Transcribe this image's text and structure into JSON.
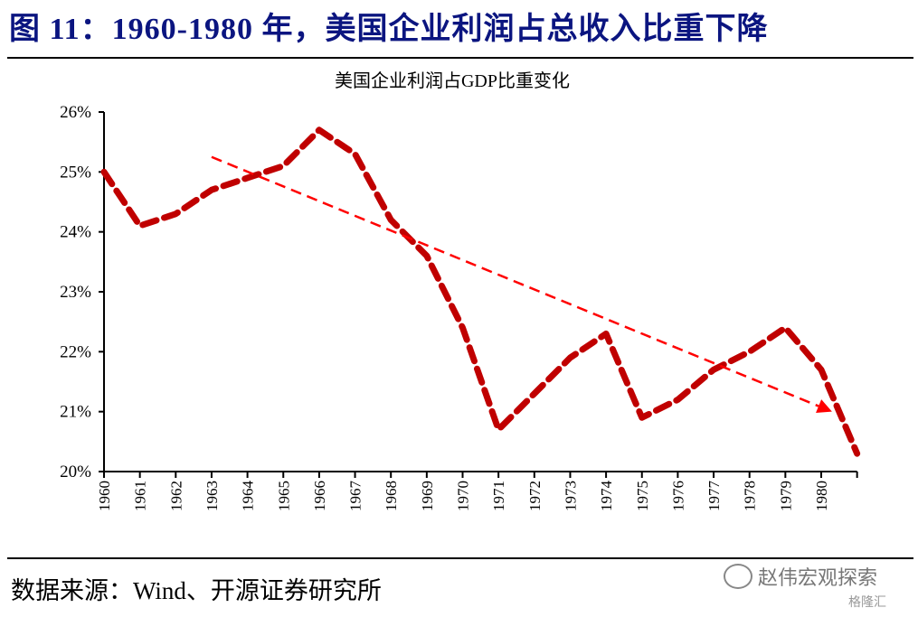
{
  "figure": {
    "title": "图 11：1960-1980 年，美国企业利润占总收入比重下降",
    "source": "数据来源：Wind、开源证券研究所",
    "watermark": "赵伟宏观探索",
    "watermark2": "格隆汇"
  },
  "colors": {
    "title": "#0b1580",
    "series": "#c00000",
    "trend": "#ff0000",
    "axis": "#000000"
  },
  "chart_data": {
    "type": "line",
    "title": "美国企业利润占GDP比重变化",
    "xlabel": "",
    "ylabel": "",
    "ylim": [
      20,
      26
    ],
    "yticks": [
      "20%",
      "21%",
      "22%",
      "23%",
      "24%",
      "25%",
      "26%"
    ],
    "ytick_values": [
      20,
      21,
      22,
      23,
      24,
      25,
      26
    ],
    "xtick_labels": [
      "1960",
      "1961",
      "1962",
      "1963",
      "1964",
      "1965",
      "1966",
      "1967",
      "1968",
      "1969",
      "1970",
      "1971",
      "1972",
      "1973",
      "1974",
      "1975",
      "1976",
      "1977",
      "1978",
      "1979",
      "1980"
    ],
    "x": [
      1960,
      1961,
      1962,
      1963,
      1964,
      1965,
      1966,
      1967,
      1968,
      1969,
      1970,
      1971,
      1972,
      1973,
      1974,
      1975,
      1976,
      1977,
      1978,
      1979,
      1980,
      1981
    ],
    "xlim": [
      1960,
      1981
    ],
    "grid": false,
    "legend": "none",
    "series": [
      {
        "name": "美国企业利润占GDP比重",
        "style": "thick-dashed",
        "values": [
          25.0,
          24.1,
          24.3,
          24.7,
          24.9,
          25.1,
          25.7,
          25.3,
          24.2,
          23.6,
          22.4,
          20.7,
          21.3,
          21.9,
          22.3,
          20.9,
          21.2,
          21.7,
          22.0,
          22.4,
          21.7,
          20.3
        ]
      }
    ],
    "annotations": [
      {
        "type": "trend-arrow",
        "style": "thin-dashed",
        "from": [
          1963,
          25.25
        ],
        "to": [
          1980.3,
          21.0
        ]
      }
    ]
  }
}
